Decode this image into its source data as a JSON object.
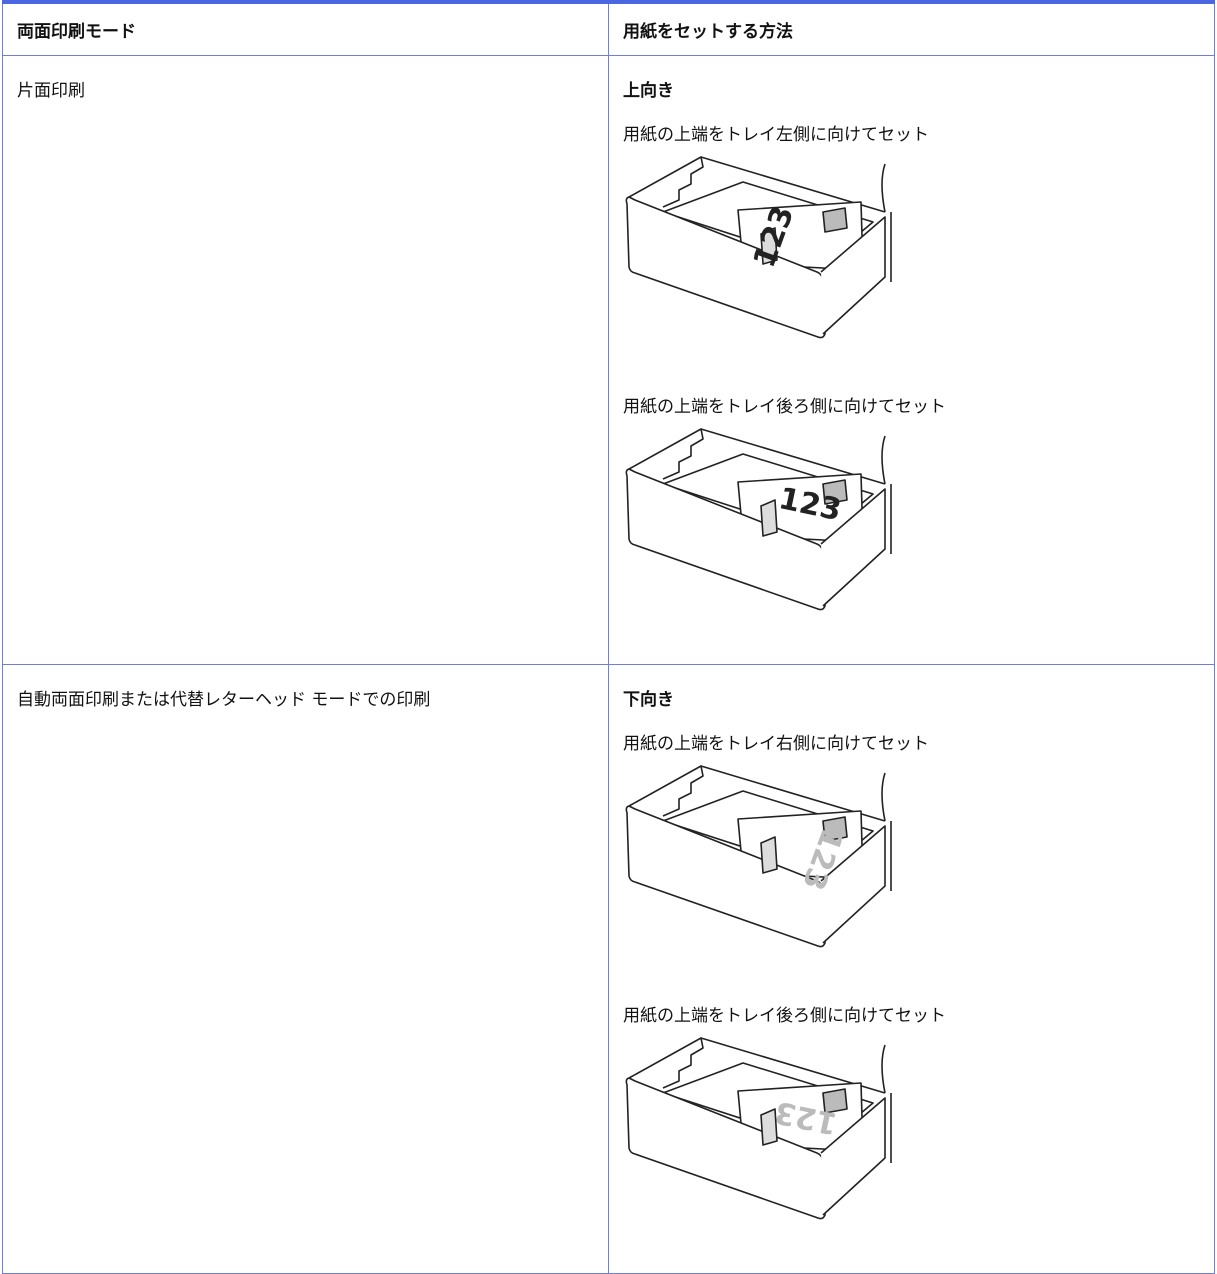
{
  "table": {
    "header": [
      "両面印刷モード",
      "用紙をセットする方法"
    ],
    "rows": [
      {
        "mode": "片面印刷",
        "orientation": "上向き",
        "items": [
          {
            "caption": "用紙の上端をトレイ左側に向けてセット",
            "paper_label": "123"
          },
          {
            "caption": "用紙の上端をトレイ後ろ側に向けてセット",
            "paper_label": "123"
          }
        ]
      },
      {
        "mode": "自動両面印刷または代替レターヘッド モードでの印刷",
        "orientation": "下向き",
        "items": [
          {
            "caption": "用紙の上端をトレイ右側に向けてセット",
            "paper_label": "123"
          },
          {
            "caption": "用紙の上端をトレイ後ろ側に向けてセット",
            "paper_label": "123"
          }
        ]
      }
    ]
  }
}
